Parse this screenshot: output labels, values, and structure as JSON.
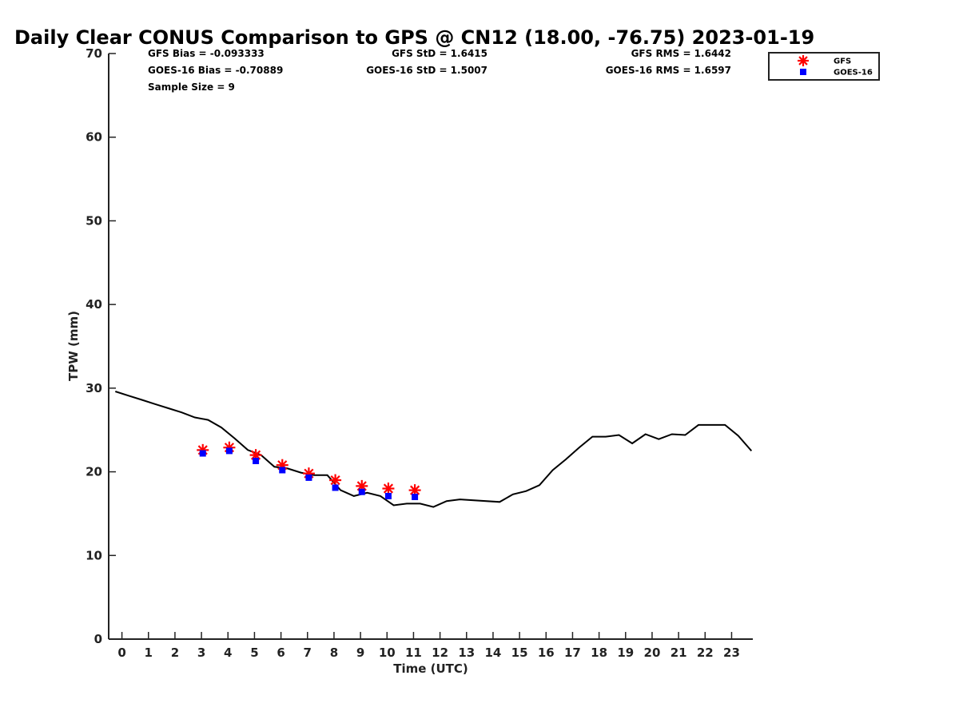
{
  "chart_data": {
    "type": "line",
    "title": "Daily Clear CONUS Comparison to GPS @ CN12 (18.00, -76.75) 2023-01-19",
    "xlabel": "Time (UTC)",
    "ylabel": "TPW (mm)",
    "xlim": [
      -0.5,
      23.8
    ],
    "ylim": [
      0,
      70
    ],
    "x_ticks": [
      0,
      1,
      2,
      3,
      4,
      5,
      6,
      7,
      8,
      9,
      10,
      11,
      12,
      13,
      14,
      15,
      16,
      17,
      18,
      19,
      20,
      21,
      22,
      23
    ],
    "y_ticks": [
      0,
      10,
      20,
      30,
      40,
      50,
      60,
      70
    ],
    "grid": false,
    "legend_position": "top-right",
    "stats": [
      {
        "text": "GFS Bias = -0.093333"
      },
      {
        "text": "GFS StD = 1.6415"
      },
      {
        "text": "GFS RMS = 1.6442"
      },
      {
        "text": "GOES-16 Bias = -0.70889"
      },
      {
        "text": "GOES-16 StD = 1.5007"
      },
      {
        "text": "GOES-16 RMS = 1.6597"
      },
      {
        "text": "Sample Size = 9"
      }
    ],
    "series": [
      {
        "style": "line",
        "color": "#000000",
        "x": [
          -0.25,
          0.25,
          0.75,
          1.25,
          1.75,
          2.25,
          2.75,
          3.25,
          3.75,
          4.25,
          4.75,
          5.25,
          5.75,
          6.25,
          6.75,
          7.25,
          7.75,
          8.25,
          8.75,
          9.25,
          9.75,
          10.25,
          10.75,
          11.25,
          11.75,
          12.25,
          12.75,
          14.25,
          14.75,
          15.25,
          15.75,
          16.25,
          16.75,
          17.25,
          17.75,
          18.25,
          18.75,
          19.25,
          19.75,
          20.25,
          20.75,
          21.25,
          21.75,
          22.25,
          22.75,
          23.25,
          23.75
        ],
        "y": [
          29.6,
          29.1,
          28.6,
          28.1,
          27.6,
          27.1,
          26.5,
          26.2,
          25.3,
          24.0,
          22.6,
          22.0,
          20.6,
          20.4,
          19.9,
          19.6,
          19.6,
          17.8,
          17.1,
          17.5,
          17.1,
          16.0,
          16.2,
          16.2,
          15.8,
          16.5,
          16.7,
          16.4,
          17.3,
          17.7,
          18.4,
          20.2,
          21.5,
          22.9,
          24.2,
          24.2,
          24.4,
          23.4,
          24.5,
          23.9,
          24.5,
          24.4,
          25.6,
          25.6,
          25.6,
          24.3,
          22.5
        ]
      },
      {
        "name": "GFS",
        "style": "marker",
        "marker": "asterisk",
        "color": "#ff0000",
        "x": [
          3.05,
          4.05,
          5.05,
          6.05,
          7.05,
          8.05,
          9.05,
          10.05,
          11.05
        ],
        "y": [
          22.6,
          22.9,
          22.0,
          20.8,
          19.8,
          19.0,
          18.3,
          18.0,
          17.8
        ]
      },
      {
        "name": "GOES-16",
        "style": "marker",
        "marker": "square",
        "color": "#0000ff",
        "x": [
          3.05,
          4.05,
          5.05,
          6.05,
          7.05,
          8.05,
          9.05,
          10.05,
          11.05
        ],
        "y": [
          22.2,
          22.5,
          21.3,
          20.2,
          19.3,
          18.1,
          17.6,
          17.1,
          17.0
        ]
      }
    ]
  }
}
